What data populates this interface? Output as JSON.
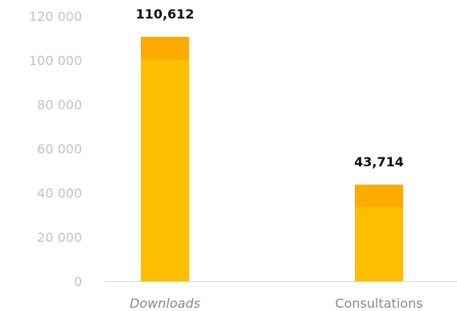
{
  "chart_data": {
    "type": "bar",
    "categories": [
      "Downloads",
      "Consultations"
    ],
    "categories_italic": [
      true,
      false
    ],
    "values": [
      110612,
      43714
    ],
    "data_labels": [
      "110,612",
      "43,714"
    ],
    "yticks": [
      0,
      20000,
      40000,
      60000,
      80000,
      100000,
      120000
    ],
    "ytick_labels": [
      "0",
      "20 000",
      "40 000",
      "60 000",
      "80 000",
      "100 000",
      "120 000"
    ],
    "ylim": [
      0,
      120000
    ],
    "title": "",
    "xlabel": "",
    "ylabel": "",
    "grid": false,
    "colors": {
      "bar": "#FDBE00",
      "bar_top": "#FCAB00",
      "axis": "#d9d9d9",
      "tick_text": "#c2c2c2",
      "category_text": "#8a8a8a",
      "data_label_text": "#111111"
    }
  }
}
